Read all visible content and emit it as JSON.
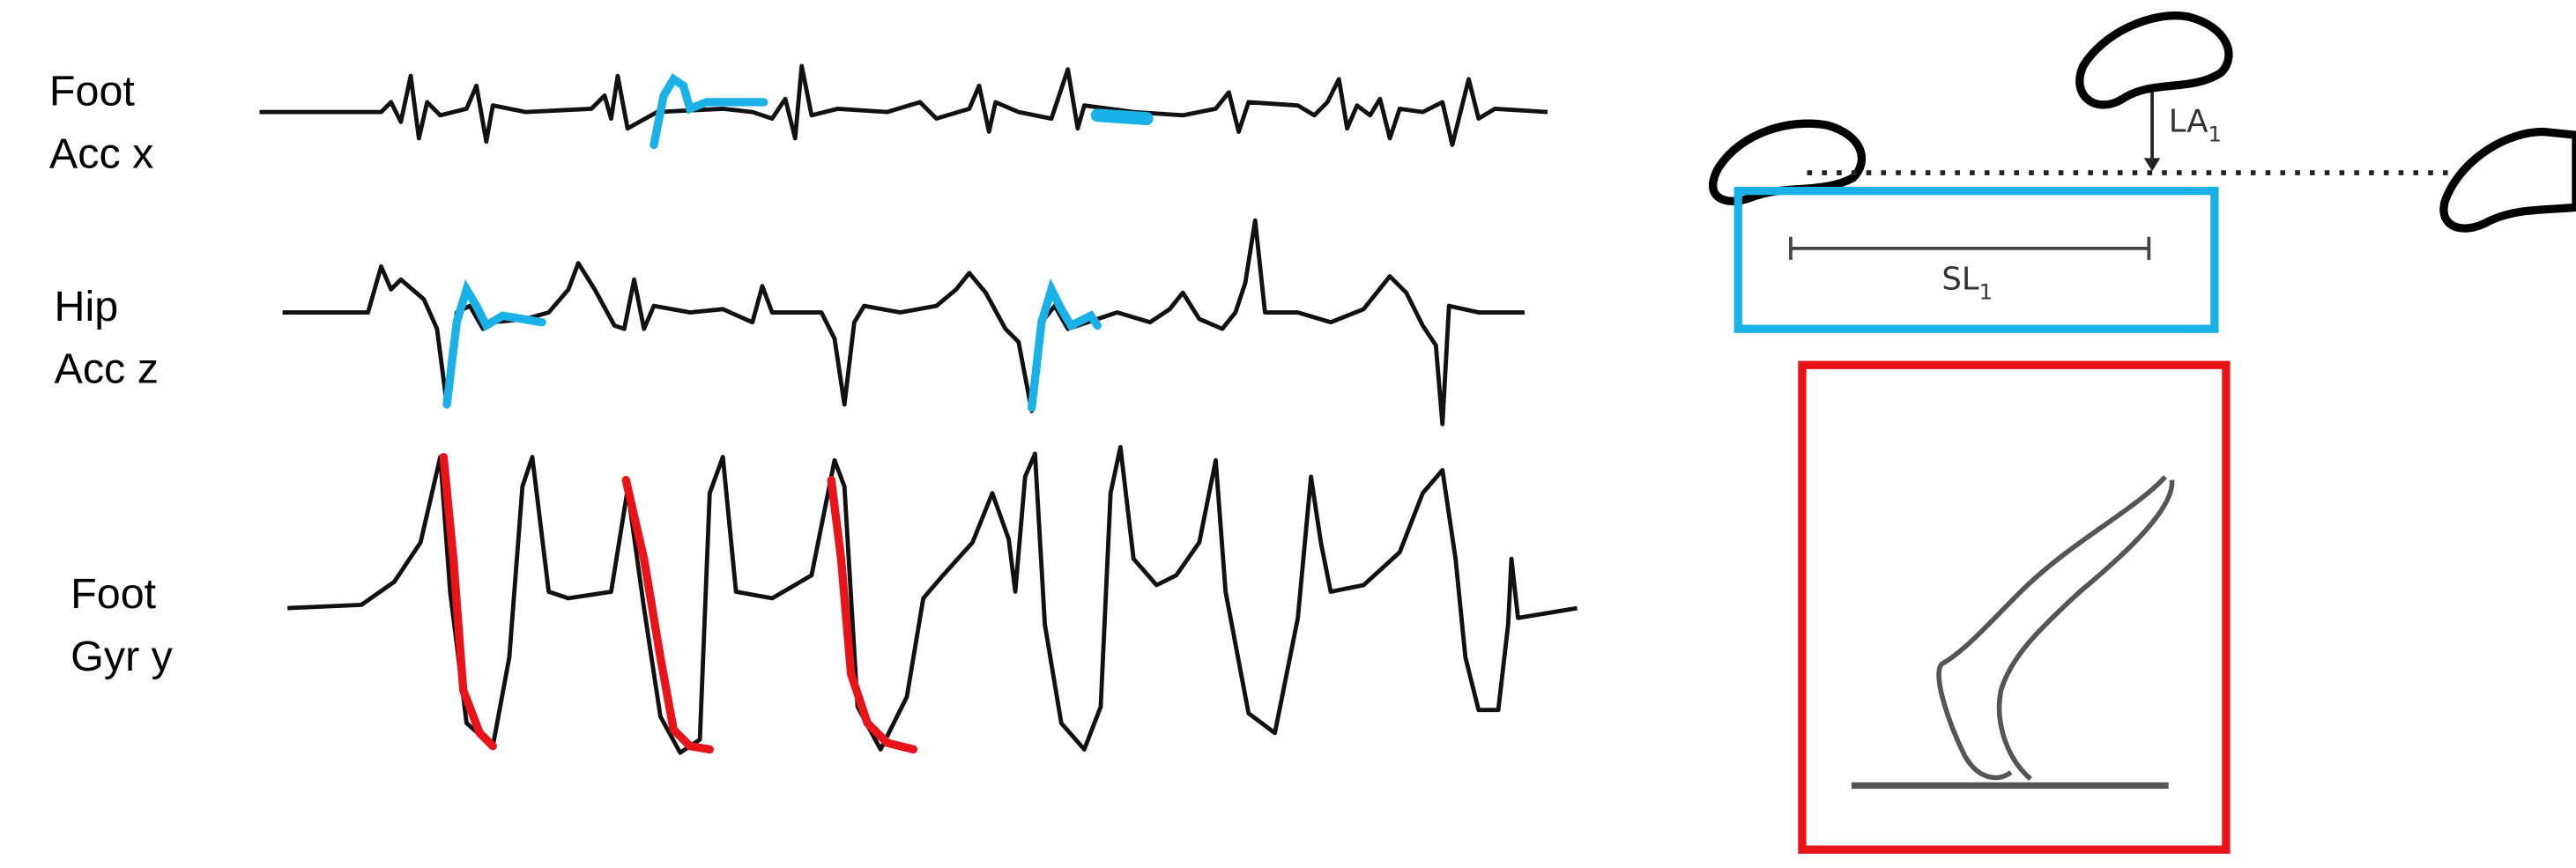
{
  "signals": [
    {
      "label": [
        "Foot",
        "Acc x"
      ]
    },
    {
      "label": [
        "Hip",
        "Acc z"
      ]
    },
    {
      "label": [
        "Foot",
        "Gyr y"
      ]
    }
  ],
  "gait": {
    "lateral": {
      "main": "LA",
      "sub": "1"
    },
    "stride": {
      "main": "SL",
      "sub": "1"
    }
  }
}
